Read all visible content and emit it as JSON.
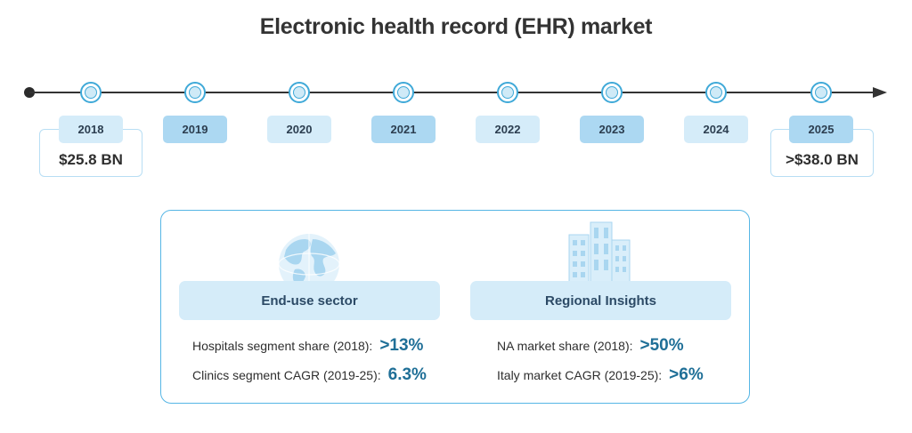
{
  "title": "Electronic health record (EHR) market",
  "timeline": {
    "years": [
      {
        "label": "2018",
        "style": "light"
      },
      {
        "label": "2019",
        "style": "dark"
      },
      {
        "label": "2020",
        "style": "light"
      },
      {
        "label": "2021",
        "style": "dark"
      },
      {
        "label": "2022",
        "style": "light"
      },
      {
        "label": "2023",
        "style": "dark"
      },
      {
        "label": "2024",
        "style": "light"
      },
      {
        "label": "2025",
        "style": "dark"
      }
    ],
    "start_value": "$25.8 BN",
    "end_value": ">$38.0 BN"
  },
  "insights": {
    "end_use": {
      "icon": "globe-icon",
      "heading": "End-use sector",
      "stats": [
        {
          "label": "Hospitals segment share (2018):",
          "value": ">13%"
        },
        {
          "label": "Clinics segment CAGR (2019-25):",
          "value": "6.3%"
        }
      ]
    },
    "regional": {
      "icon": "building-icon",
      "heading": "Regional Insights",
      "stats": [
        {
          "label": "NA market share (2018):",
          "value": ">50%"
        },
        {
          "label": "Italy market CAGR (2019-25):",
          "value": ">6%"
        }
      ]
    }
  },
  "colors": {
    "accent": "#3fa9d8",
    "label_light": "#d5ecf9",
    "label_dark": "#acd8f2",
    "value_text": "#1f6f97",
    "panel_border": "#56b6e5"
  }
}
